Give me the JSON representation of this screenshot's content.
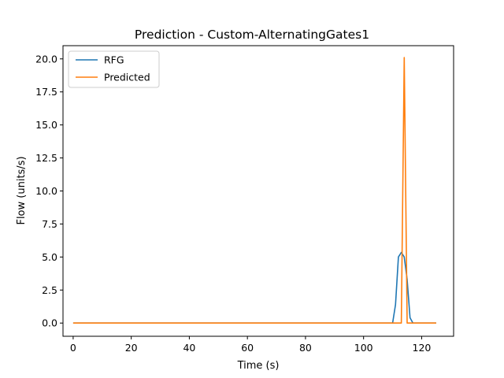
{
  "chart_data": {
    "type": "line",
    "title": "Prediction - Custom-AlternatingGates1",
    "xlabel": "Time (s)",
    "ylabel": "Flow (units/s)",
    "xlim": [
      -3.5,
      131
    ],
    "ylim": [
      -1.0,
      21.0
    ],
    "x_ticks": [
      0,
      20,
      40,
      60,
      80,
      100,
      120
    ],
    "y_ticks": [
      0.0,
      2.5,
      5.0,
      7.5,
      10.0,
      12.5,
      15.0,
      17.5,
      20.0
    ],
    "x_tick_labels": [
      "0",
      "20",
      "40",
      "60",
      "80",
      "100",
      "120"
    ],
    "y_tick_labels": [
      "0.0",
      "2.5",
      "5.0",
      "7.5",
      "10.0",
      "12.5",
      "15.0",
      "17.5",
      "20.0"
    ],
    "grid": false,
    "legend_position": "top-left",
    "series": [
      {
        "name": "RFG",
        "color": "#1f77b4",
        "points": [
          [
            0,
            0
          ],
          [
            110,
            0
          ],
          [
            111,
            1.4
          ],
          [
            112,
            5.0
          ],
          [
            113,
            5.35
          ],
          [
            114,
            5.0
          ],
          [
            115,
            3.3
          ],
          [
            116,
            0.4
          ],
          [
            117,
            0
          ],
          [
            125,
            0
          ]
        ]
      },
      {
        "name": "Predicted",
        "color": "#ff7f0e",
        "points": [
          [
            0,
            0
          ],
          [
            113,
            0
          ],
          [
            114,
            20.1
          ],
          [
            115,
            0
          ],
          [
            125,
            0
          ]
        ]
      }
    ]
  }
}
